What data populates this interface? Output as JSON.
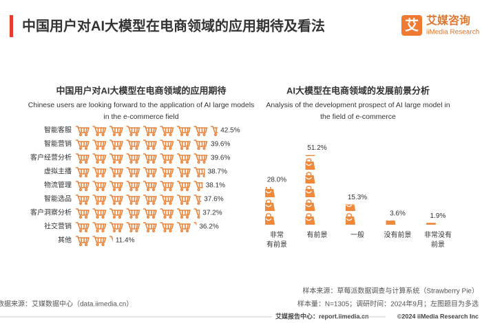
{
  "header": {
    "title": "中国用户对AI大模型在电商领域的应用期待及看法",
    "logo_mark": "艾",
    "logo_cn": "艾媒咨询",
    "logo_en": "iiMedia Research"
  },
  "chart_data": [
    {
      "type": "pictogram-bar",
      "title": "中国用户对AI大模型在电商领域的应用期待",
      "subtitle": "Chinese users are looking forward to the application of AI large models in the e-commerce field",
      "categories": [
        "智能客服",
        "智能营销",
        "客户经营分析",
        "虚拟主播",
        "物流管理",
        "智能选品",
        "客户洞察分析",
        "社交营销",
        "其他"
      ],
      "values": [
        42.5,
        39.6,
        39.6,
        38.7,
        38.1,
        37.6,
        37.2,
        36.2,
        11.4
      ],
      "value_labels": [
        "42.5%",
        "39.6%",
        "39.6%",
        "38.7%",
        "38.1%",
        "37.6%",
        "37.2%",
        "36.2%",
        "11.4%"
      ],
      "color": "#e8833a"
    },
    {
      "type": "pictogram-column",
      "title": "AI大模型在电商领域的发展前景分析",
      "subtitle": "Analysis of the development prospect of AI large model in the field of e-commerce",
      "categories": [
        "非常\n有前景",
        "有前景",
        "一般",
        "没有前景",
        "非常没有\n前景"
      ],
      "values": [
        28.0,
        51.2,
        15.3,
        3.6,
        1.9
      ],
      "value_labels": [
        "28.0%",
        "51.2%",
        "15.3%",
        "3.6%",
        "1.9%"
      ],
      "color": "#ef8a3d"
    }
  ],
  "footer": {
    "source_left": "数据来源：艾媒数据中心（data.iimedia.cn）",
    "sample_source": "样本来源：草莓派数据调查与计算系统（Strawberry Pie）",
    "sample_size": "样本量：N=1305；调研时间：2024年9月；左图题目为多选",
    "report_center": "艾媒报告中心：report.iimedia.cn",
    "copyright": "©2024  iiMedia Research Inc"
  }
}
